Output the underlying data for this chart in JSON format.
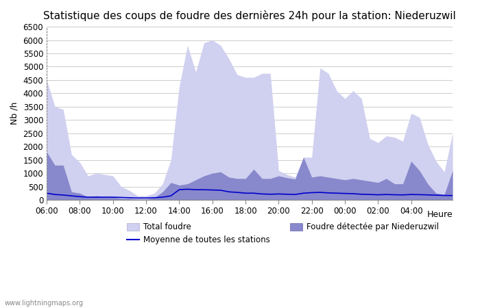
{
  "title": "Statistique des coups de foudre des dernières 24h pour la station: Niederuzwil",
  "xlabel": "Heure",
  "ylabel": "Nb /h",
  "watermark": "www.lightningmaps.org",
  "x_tick_positions": [
    6,
    8,
    10,
    12,
    14,
    16,
    18,
    20,
    22,
    24,
    26,
    28
  ],
  "x_tick_labels": [
    "06:00",
    "08:00",
    "10:00",
    "12:00",
    "14:00",
    "16:00",
    "18:00",
    "20:00",
    "22:00",
    "00:00",
    "02:00",
    "04:00"
  ],
  "ylim": [
    0,
    6500
  ],
  "yticks": [
    0,
    500,
    1000,
    1500,
    2000,
    2500,
    3000,
    3500,
    4000,
    4500,
    5000,
    5500,
    6000,
    6500
  ],
  "bg_color": "#ffffff",
  "grid_color": "#cccccc",
  "total_foudre_color": "#d0d0f0",
  "niederuzwil_color": "#8888cc",
  "moyenne_color": "#0000cc",
  "title_fontsize": 11,
  "x_hours": [
    6,
    6.5,
    7,
    7.5,
    8,
    8.5,
    9,
    9.5,
    10,
    10.5,
    11,
    11.5,
    12,
    12.5,
    13,
    13.5,
    14,
    14.5,
    15,
    15.5,
    16,
    16.5,
    17,
    17.5,
    18,
    18.5,
    19,
    19.5,
    20,
    20.5,
    21,
    21.5,
    22,
    22.5,
    23,
    23.5,
    24,
    24.5,
    25,
    25.5,
    26,
    26.5,
    27,
    27.5,
    28,
    28.5,
    29,
    29.5,
    30,
    30.5
  ],
  "total_foudre": [
    4500,
    3500,
    3400,
    1700,
    1400,
    900,
    1000,
    950,
    900,
    500,
    350,
    150,
    150,
    250,
    600,
    1500,
    4250,
    5800,
    4800,
    5900,
    6000,
    5800,
    5300,
    4700,
    4600,
    4600,
    4750,
    4750,
    1100,
    950,
    850,
    1600,
    1600,
    4950,
    4750,
    4100,
    3800,
    4100,
    3800,
    2300,
    2150,
    2400,
    2350,
    2200,
    3250,
    3100,
    2100,
    1450,
    1050,
    2500
  ],
  "niederuzwil": [
    1800,
    1300,
    1300,
    300,
    250,
    100,
    150,
    100,
    100,
    50,
    50,
    30,
    30,
    80,
    300,
    650,
    550,
    600,
    750,
    900,
    1000,
    1050,
    850,
    800,
    800,
    1150,
    800,
    800,
    900,
    830,
    780,
    1600,
    850,
    900,
    850,
    800,
    750,
    800,
    750,
    700,
    650,
    800,
    600,
    600,
    1450,
    1100,
    600,
    250,
    200,
    1100
  ],
  "moyenne": [
    250,
    200,
    180,
    150,
    120,
    100,
    100,
    100,
    100,
    90,
    80,
    70,
    70,
    80,
    100,
    150,
    380,
    400,
    380,
    380,
    370,
    360,
    300,
    280,
    250,
    250,
    220,
    210,
    220,
    210,
    200,
    250,
    270,
    280,
    260,
    250,
    240,
    230,
    210,
    200,
    190,
    200,
    190,
    185,
    200,
    195,
    185,
    175,
    165,
    160
  ]
}
